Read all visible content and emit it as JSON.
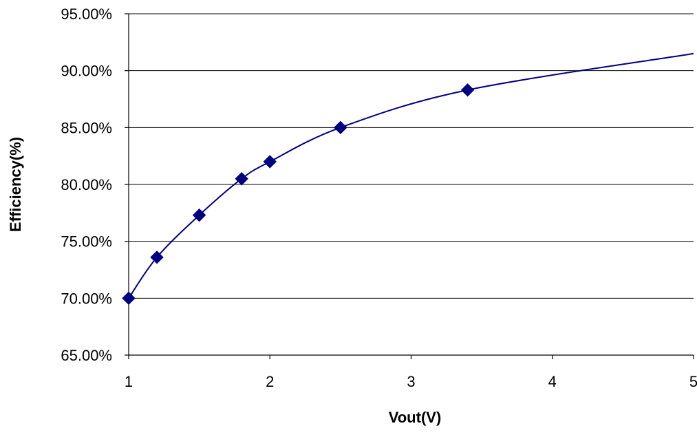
{
  "chart_data": {
    "type": "line",
    "title": "",
    "xlabel": "Vout(V)",
    "ylabel": "Efficiency(%)",
    "xlim": [
      1,
      5
    ],
    "ylim": [
      0.65,
      0.95
    ],
    "x_ticks": [
      1,
      2,
      3,
      4,
      5
    ],
    "x_tick_labels": [
      "1",
      "2",
      "3",
      "4",
      "5"
    ],
    "y_ticks": [
      0.65,
      0.7,
      0.75,
      0.8,
      0.85,
      0.9,
      0.95
    ],
    "y_tick_labels": [
      "65.00%",
      "70.00%",
      "75.00%",
      "80.00%",
      "85.00%",
      "90.00%",
      "95.00%"
    ],
    "grid": "horizontal",
    "legend": "none",
    "series": [
      {
        "color": "#000080",
        "marker": "diamond",
        "x": [
          1.0,
          1.2,
          1.5,
          1.8,
          2.0,
          2.5,
          3.4,
          5.0
        ],
        "y": [
          0.7,
          0.736,
          0.773,
          0.805,
          0.82,
          0.85,
          0.883,
          0.915
        ]
      }
    ]
  }
}
